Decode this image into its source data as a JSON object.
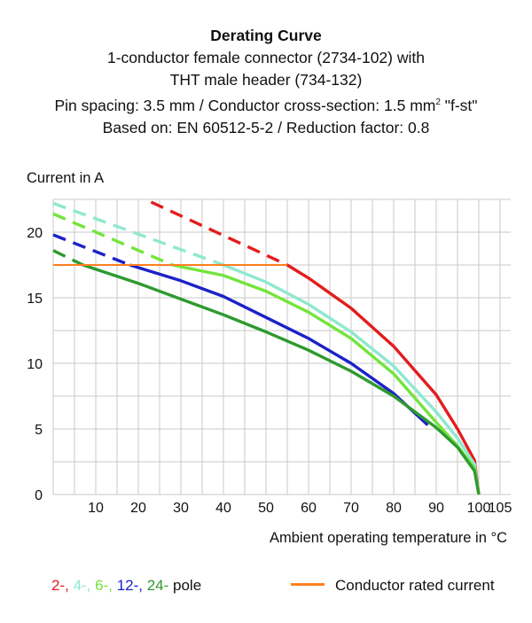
{
  "title": {
    "line1": "Derating Curve",
    "line2": "1-conductor female connector (2734-102) with",
    "line3": "THT male header (734-132)",
    "line4_a": "Pin spacing: 3.5 mm / Conductor cross-section: 1.5 mm",
    "line4_sup": "2",
    "line4_b": " \"f-st\"",
    "line5": "Based on: EN 60512-5-2 / Reduction factor: 0.8"
  },
  "legend": {
    "poles": [
      {
        "text": "2-,",
        "color": "#e41c1c"
      },
      {
        "text": " 4-,",
        "color": "#8fe8d0"
      },
      {
        "text": " 6-,",
        "color": "#74e43c"
      },
      {
        "text": " 12-,",
        "color": "#1b22c8"
      },
      {
        "text": " 24-",
        "color": "#2e9a2e"
      },
      {
        "text": " pole",
        "color": "#111111"
      }
    ],
    "rated_label": "Conductor rated current",
    "rated_color": "#ff7f1f"
  },
  "chart_data": {
    "type": "line",
    "title": "Derating Curve",
    "xlabel": "Ambient operating temperature in °C",
    "ylabel": "Current in A",
    "xlim": [
      0,
      107.5
    ],
    "ylim": [
      0,
      22.5
    ],
    "xticks": [
      10,
      20,
      30,
      40,
      50,
      60,
      70,
      80,
      90,
      100,
      105
    ],
    "yticks": [
      0,
      5,
      10,
      15,
      20
    ],
    "grid": true,
    "legend_position": "bottom",
    "series": [
      {
        "name": "2-pole",
        "color": "#e41c1c",
        "dashed": [
          [
            23,
            22.3
          ],
          [
            55,
            17.5
          ]
        ],
        "solid": [
          [
            55,
            17.5
          ],
          [
            60,
            16.5
          ],
          [
            70,
            14.2
          ],
          [
            80,
            11.3
          ],
          [
            90,
            7.6
          ],
          [
            95,
            5.0
          ],
          [
            99,
            2.6
          ],
          [
            100,
            0
          ]
        ]
      },
      {
        "name": "4-pole",
        "color": "#8fe8d0",
        "dashed": [
          [
            0,
            22.2
          ],
          [
            40,
            17.5
          ]
        ],
        "solid": [
          [
            40,
            17.5
          ],
          [
            50,
            16.2
          ],
          [
            60,
            14.5
          ],
          [
            70,
            12.4
          ],
          [
            80,
            9.8
          ],
          [
            90,
            6.3
          ],
          [
            95,
            4.3
          ],
          [
            99,
            2.3
          ],
          [
            100,
            0
          ]
        ]
      },
      {
        "name": "6-pole",
        "color": "#74e43c",
        "dashed": [
          [
            0,
            21.4
          ],
          [
            28,
            17.5
          ]
        ],
        "solid": [
          [
            28,
            17.5
          ],
          [
            40,
            16.7
          ],
          [
            50,
            15.5
          ],
          [
            60,
            13.9
          ],
          [
            70,
            11.9
          ],
          [
            80,
            9.2
          ],
          [
            90,
            5.5
          ],
          [
            95,
            3.7
          ],
          [
            99,
            2.0
          ],
          [
            100,
            0
          ]
        ]
      },
      {
        "name": "12-pole",
        "color": "#1b22c8",
        "dashed": [
          [
            0,
            19.8
          ],
          [
            18,
            17.5
          ]
        ],
        "solid": [
          [
            18,
            17.5
          ],
          [
            30,
            16.3
          ],
          [
            40,
            15.1
          ],
          [
            50,
            13.5
          ],
          [
            60,
            11.9
          ],
          [
            70,
            10.0
          ],
          [
            80,
            7.7
          ],
          [
            88,
            5.3
          ]
        ]
      },
      {
        "name": "24-pole",
        "color": "#2e9a2e",
        "dashed": [
          [
            0,
            18.6
          ],
          [
            7,
            17.5
          ]
        ],
        "solid": [
          [
            7,
            17.5
          ],
          [
            20,
            16.1
          ],
          [
            30,
            14.9
          ],
          [
            40,
            13.7
          ],
          [
            50,
            12.4
          ],
          [
            60,
            11.0
          ],
          [
            70,
            9.4
          ],
          [
            80,
            7.5
          ],
          [
            90,
            5.1
          ],
          [
            95,
            3.6
          ],
          [
            99,
            1.8
          ],
          [
            100,
            0
          ]
        ]
      },
      {
        "name": "Conductor rated current",
        "color": "#ff7f1f",
        "solid": [
          [
            0,
            17.5
          ],
          [
            55,
            17.5
          ]
        ]
      }
    ]
  }
}
